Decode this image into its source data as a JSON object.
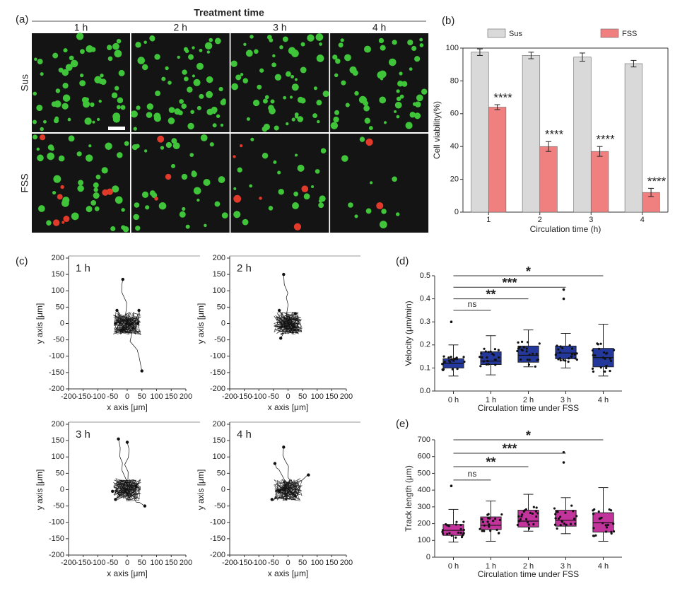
{
  "panel_a": {
    "panel_label": "(a)",
    "title": "Treatment time",
    "columns": [
      "1 h",
      "2 h",
      "3 h",
      "4 h"
    ],
    "rows": [
      "Sus",
      "FSS"
    ]
  },
  "chart_data": [
    {
      "type": "bar",
      "panel_label": "(b)",
      "x_label": "Circulation time (h)",
      "y_label": "Cell viability(%)",
      "categories": [
        "1",
        "2",
        "3",
        "4"
      ],
      "ylim": [
        0,
        100
      ],
      "yticks": [
        0,
        20,
        40,
        60,
        80,
        100
      ],
      "series": [
        {
          "name": "Sus",
          "color": "#d9d9d9",
          "values": [
            97.5,
            95.5,
            94.5,
            90.5
          ],
          "errors": [
            2,
            2,
            2.5,
            2
          ]
        },
        {
          "name": "FSS",
          "color": "#f08080",
          "values": [
            64,
            40,
            37,
            12
          ],
          "errors": [
            1.5,
            3,
            3,
            2.5
          ],
          "significance": [
            "****",
            "****",
            "****",
            "****"
          ]
        }
      ]
    },
    {
      "type": "scatter",
      "panel_label": "(c)",
      "annotation": "1 h",
      "x_label": "x axis [μm]",
      "y_label": "y axis [μm]",
      "x": [
        -15,
        50,
        -35,
        40,
        -40,
        35,
        20,
        -20
      ],
      "y": [
        135,
        -145,
        40,
        40,
        0,
        0,
        -15,
        -20
      ],
      "xlim": [
        -200,
        200
      ],
      "ylim": [
        -200,
        200
      ],
      "xticks": [
        -200,
        -150,
        -100,
        -50,
        0,
        50,
        100,
        150,
        200
      ],
      "yticks": [
        -200,
        -150,
        -100,
        -50,
        0,
        50,
        100,
        150,
        200
      ]
    },
    {
      "type": "scatter",
      "annotation": "2 h",
      "x_label": "x axis [μm]",
      "y_label": "y axis [μm]",
      "x": [
        -15,
        -30,
        25,
        -25,
        20
      ],
      "y": [
        150,
        40,
        30,
        -45,
        -10
      ],
      "xlim": [
        -200,
        200
      ],
      "ylim": [
        -200,
        200
      ],
      "xticks": [
        -200,
        -150,
        -100,
        -50,
        0,
        50,
        100,
        150,
        200
      ],
      "yticks": [
        -200,
        -150,
        -100,
        -50,
        0,
        50,
        100,
        150,
        200
      ]
    },
    {
      "type": "scatter",
      "annotation": "3 h",
      "x_label": "x axis [μm]",
      "y_label": "y axis [μm]",
      "x": [
        -30,
        0,
        -50,
        60,
        30,
        -40
      ],
      "y": [
        155,
        145,
        -5,
        -50,
        10,
        -30
      ],
      "xlim": [
        -200,
        200
      ],
      "ylim": [
        -200,
        200
      ],
      "xticks": [
        -200,
        -150,
        -100,
        -50,
        0,
        50,
        100,
        150,
        200
      ],
      "yticks": [
        -200,
        -150,
        -100,
        -50,
        0,
        50,
        100,
        150,
        200
      ]
    },
    {
      "type": "scatter",
      "annotation": "4 h",
      "x_label": "x axis [μm]",
      "y_label": "y axis [μm]",
      "x": [
        -45,
        -15,
        70,
        -55,
        25,
        -30
      ],
      "y": [
        80,
        130,
        45,
        -30,
        -20,
        -5
      ],
      "xlim": [
        -200,
        200
      ],
      "ylim": [
        -200,
        200
      ],
      "xticks": [
        -200,
        -150,
        -100,
        -50,
        0,
        50,
        100,
        150,
        200
      ],
      "yticks": [
        -200,
        -150,
        -100,
        -50,
        0,
        50,
        100,
        150,
        200
      ]
    },
    {
      "type": "box",
      "panel_label": "(d)",
      "x_label": "Circulation time under FSS",
      "y_label": "Velocity (μm/min)",
      "color": "#23389a",
      "categories": [
        "0 h",
        "1 h",
        "2 h",
        "3 h",
        "4 h"
      ],
      "ylim": [
        0,
        0.5
      ],
      "yticks": [
        {
          "value": 0,
          "label": "0.0"
        },
        0.1,
        0.2,
        0.3,
        0.4,
        0.5
      ],
      "boxes": [
        {
          "whislo": 0.065,
          "q1": 0.1,
          "med": 0.12,
          "q3": 0.14,
          "whishi": 0.2,
          "fliers": [
            0.3
          ]
        },
        {
          "whislo": 0.07,
          "q1": 0.115,
          "med": 0.13,
          "q3": 0.17,
          "whishi": 0.24,
          "fliers": []
        },
        {
          "whislo": 0.105,
          "q1": 0.125,
          "med": 0.155,
          "q3": 0.195,
          "whishi": 0.265,
          "fliers": []
        },
        {
          "whislo": 0.1,
          "q1": 0.14,
          "med": 0.165,
          "q3": 0.195,
          "whishi": 0.25,
          "fliers": [
            0.4,
            0.44
          ]
        },
        {
          "whislo": 0.065,
          "q1": 0.105,
          "med": 0.145,
          "q3": 0.185,
          "whishi": 0.29,
          "fliers": []
        }
      ],
      "significance": [
        {
          "from": 0,
          "to": 1,
          "y": 0.35,
          "label": "ns"
        },
        {
          "from": 0,
          "to": 2,
          "y": 0.4,
          "label": "**"
        },
        {
          "from": 0,
          "to": 3,
          "y": 0.45,
          "label": "***"
        },
        {
          "from": 0,
          "to": 4,
          "y": 0.5,
          "label": "*"
        }
      ]
    },
    {
      "type": "box",
      "panel_label": "(e)",
      "x_label": "Circulation time under FSS",
      "y_label": "Track length (μm)",
      "color": "#c2339c",
      "categories": [
        "0 h",
        "1 h",
        "2 h",
        "3 h",
        "4 h"
      ],
      "ylim": [
        0,
        700
      ],
      "yticks": [
        0,
        100,
        200,
        300,
        400,
        500,
        600,
        700
      ],
      "boxes": [
        {
          "whislo": 90,
          "q1": 130,
          "med": 160,
          "q3": 195,
          "whishi": 285,
          "fliers": [
            425
          ]
        },
        {
          "whislo": 95,
          "q1": 165,
          "med": 190,
          "q3": 240,
          "whishi": 335,
          "fliers": []
        },
        {
          "whislo": 155,
          "q1": 180,
          "med": 215,
          "q3": 280,
          "whishi": 375,
          "fliers": []
        },
        {
          "whislo": 140,
          "q1": 185,
          "med": 220,
          "q3": 280,
          "whishi": 355,
          "fliers": [
            565,
            625
          ]
        },
        {
          "whislo": 95,
          "q1": 150,
          "med": 205,
          "q3": 265,
          "whishi": 415,
          "fliers": []
        }
      ],
      "significance": [
        {
          "from": 0,
          "to": 1,
          "y": 460,
          "label": "ns"
        },
        {
          "from": 0,
          "to": 2,
          "y": 540,
          "label": "**"
        },
        {
          "from": 0,
          "to": 3,
          "y": 620,
          "label": "***"
        },
        {
          "from": 0,
          "to": 4,
          "y": 700,
          "label": "*"
        }
      ]
    }
  ]
}
